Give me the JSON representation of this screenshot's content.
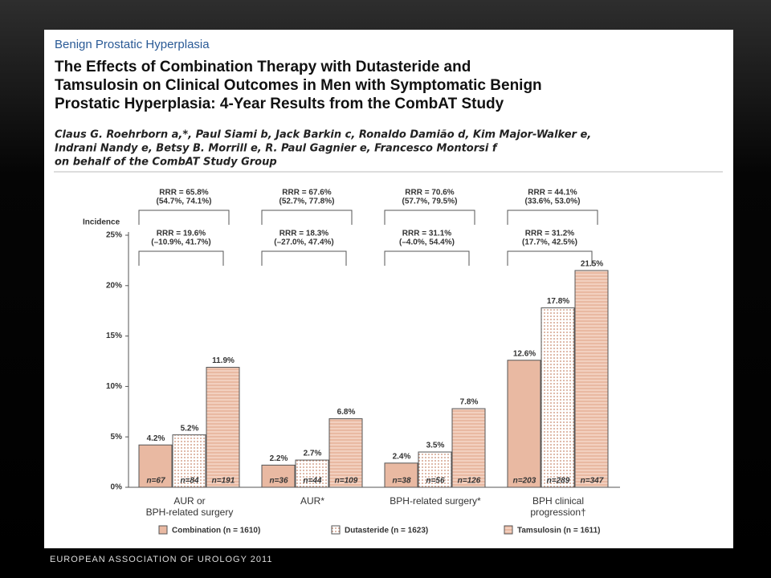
{
  "header": {
    "section": "Benign Prostatic Hyperplasia",
    "title_lines": [
      "The Effects of Combination Therapy with Dutasteride and",
      "Tamsulosin on Clinical Outcomes in Men with Symptomatic Benign",
      "Prostatic Hyperplasia: 4-Year Results from the CombAT Study"
    ],
    "author_lines": [
      "Claus G. Roehrborn a,*, Paul Siami b, Jack Barkin c, Ronaldo Damião d, Kim Major-Walker e,",
      "Indrani Nandy e, Betsy B. Morrill e, R. Paul Gagnier e, Francesco Montorsi f",
      "on behalf of the CombAT Study Group"
    ]
  },
  "footer": "EUROPEAN ASSOCIATION OF UROLOGY 2011",
  "chart_data": {
    "type": "bar",
    "y_label": "Incidence",
    "categories": [
      "AUR or BPH-related surgery",
      "AUR*",
      "BPH-related surgery*",
      "BPH clinical progression†"
    ],
    "series": [
      {
        "name": "Combination (n = 1610)",
        "color": "#e9b9a2",
        "pattern": "solid",
        "values": [
          4.2,
          2.2,
          2.4,
          12.6
        ],
        "value_labels": [
          "4.2%",
          "2.2%",
          "2.4%",
          "12.6%"
        ],
        "n_labels": [
          "n=67",
          "n=36",
          "n=38",
          "n=203"
        ]
      },
      {
        "name": "Dutasteride (n = 1623)",
        "color": "#e9b9a2",
        "pattern": "dots",
        "values": [
          5.2,
          2.7,
          3.5,
          17.8
        ],
        "value_labels": [
          "5.2%",
          "2.7%",
          "3.5%",
          "17.8%"
        ],
        "n_labels": [
          "n=84",
          "n=44",
          "n=56",
          "n=289"
        ]
      },
      {
        "name": "Tamsulosin (n = 1611)",
        "color": "#e9b9a2",
        "pattern": "lines",
        "values": [
          11.9,
          6.8,
          7.8,
          21.5
        ],
        "value_labels": [
          "11.9%",
          "6.8%",
          "7.8%",
          "21.5%"
        ],
        "n_labels": [
          "n=191",
          "n=109",
          "n=126",
          "n=347"
        ]
      }
    ],
    "upper_brackets": [
      [
        "RRR = 65.8%",
        "(54.7%, 74.1%)"
      ],
      [
        "RRR = 67.6%",
        "(52.7%, 77.8%)"
      ],
      [
        "RRR = 70.6%",
        "(57.7%, 79.5%)"
      ],
      [
        "RRR = 44.1%",
        "(33.6%, 53.0%)"
      ]
    ],
    "lower_brackets": [
      [
        "RRR = 19.6%",
        "(–10.9%, 41.7%)"
      ],
      [
        "RRR = 18.3%",
        "(–27.0%, 47.4%)"
      ],
      [
        "RRR = 31.1%",
        "(–4.0%, 54.4%)"
      ],
      [
        "RRR = 31.2%",
        "(17.7%, 42.5%)"
      ]
    ],
    "ylim": [
      0,
      25
    ],
    "yticks": [
      {
        "value": 0,
        "label": "0%"
      },
      {
        "value": 5,
        "label": "5%"
      },
      {
        "value": 10,
        "label": "10%"
      },
      {
        "value": 15,
        "label": "15%"
      },
      {
        "value": 20,
        "label": "20%"
      },
      {
        "value": 25,
        "label": "25%"
      }
    ]
  }
}
